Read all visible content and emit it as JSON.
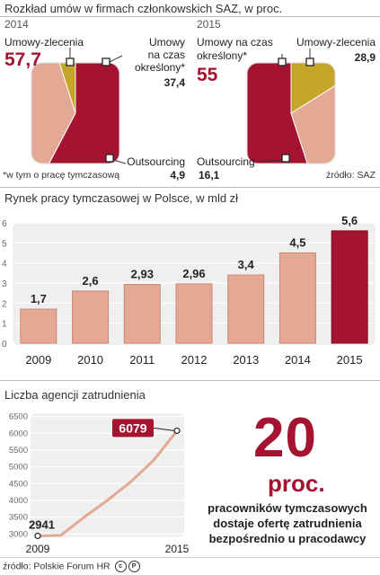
{
  "colors": {
    "red": "#a4132f",
    "salmon": "#e3a994",
    "gold": "#c5a62a",
    "gridbg": "#f2f2f2",
    "line": "#e2a892"
  },
  "section1": {
    "title": "Rozkład umów w firmach członkowskich SAZ, w proc.",
    "footnote": "*w tym o pracę tymczasową",
    "source": "źródło: SAZ"
  },
  "chart_data": [
    {
      "type": "pie",
      "title": "2014",
      "labels": [
        "Umowy-zlecenia",
        "Umowy na czas określony*",
        "Outsourcing"
      ],
      "values": [
        57.7,
        37.4,
        4.9
      ],
      "value_labels": [
        "57,7",
        "37,4",
        "4,9"
      ],
      "colors": [
        "#a4132f",
        "#e3a994",
        "#c5a62a"
      ]
    },
    {
      "type": "pie",
      "title": "2015",
      "labels": [
        "Umowy na czas określony*",
        "Umowy-zlecenia",
        "Outsourcing"
      ],
      "values": [
        55,
        28.9,
        16.1
      ],
      "value_labels": [
        "55",
        "28,9",
        "16,1"
      ],
      "colors": [
        "#a4132f",
        "#e3a994",
        "#c5a62a"
      ]
    },
    {
      "type": "bar",
      "title": "Rynek pracy tymczasowej w Polsce, w mld zł",
      "categories": [
        "2009",
        "2010",
        "2011",
        "2012",
        "2013",
        "2014",
        "2015"
      ],
      "values": [
        1.7,
        2.6,
        2.93,
        2.96,
        3.4,
        4.5,
        5.6
      ],
      "value_labels": [
        "1,7",
        "2,6",
        "2,93",
        "2,96",
        "3,4",
        "4,5",
        "5,6"
      ],
      "ylim": [
        0,
        6
      ],
      "yticks": [
        "0",
        "1",
        "2",
        "3",
        "4",
        "5",
        "6"
      ],
      "highlight_index": 6
    },
    {
      "type": "line",
      "title": "Liczba agencji zatrudnienia",
      "x": [
        2009,
        2010,
        2011,
        2012,
        2013,
        2014,
        2015
      ],
      "xtick_labels": [
        "2009",
        "2015"
      ],
      "values": [
        2941,
        2960,
        3500,
        4000,
        4550,
        5200,
        6079
      ],
      "ylim": [
        2900,
        6600
      ],
      "yticks": [
        "3000",
        "3500",
        "4000",
        "4500",
        "5000",
        "5500",
        "6000",
        "6500"
      ],
      "start_label": "2941",
      "end_label": "6079"
    }
  ],
  "callout": {
    "number": "20",
    "unit": "proc.",
    "line1": "pracowników tymczasowych",
    "line2": "dostaje ofertę zatrudnienia",
    "line3": "bezpośrednio u pracodawcy"
  },
  "footer": {
    "source": "źródło: Polskie Forum HR",
    "cc": "c",
    "p": "P"
  }
}
